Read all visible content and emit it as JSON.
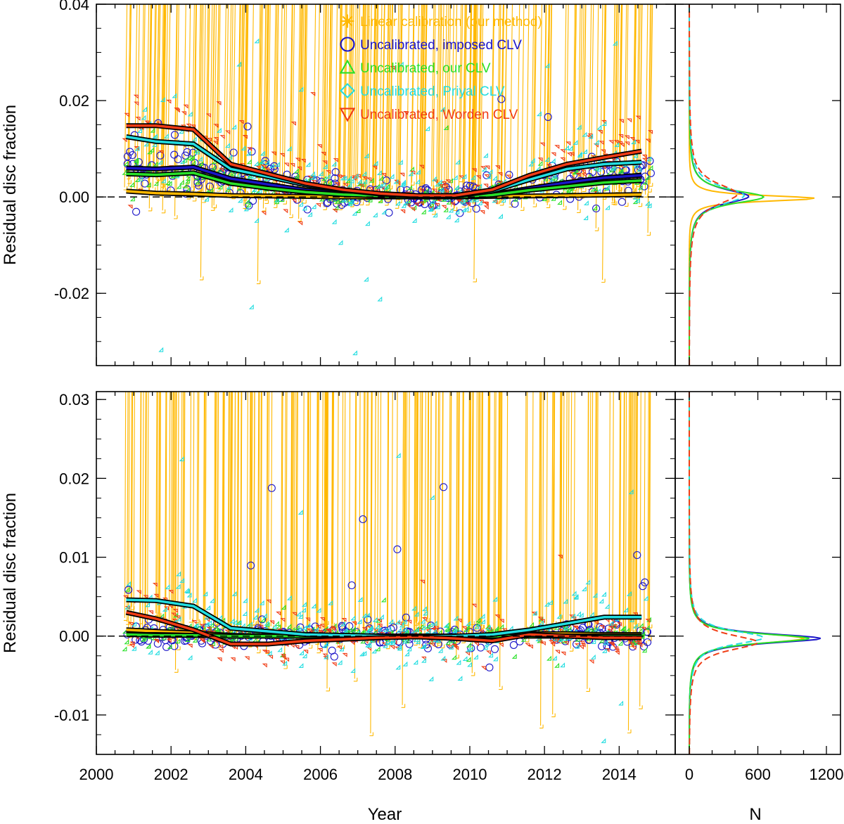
{
  "colors": {
    "linear": "#ffb800",
    "imposed": "#1a14c8",
    "our": "#28e028",
    "priyal": "#22dde0",
    "worden": "#f03c14",
    "trend": "#000000"
  },
  "chart_data": [
    {
      "type": "scatter",
      "panel": "top",
      "ylabel": "Residual disc fraction",
      "xlabel": "",
      "xlim": [
        2000,
        2015.5
      ],
      "ylim": [
        -0.035,
        0.04
      ],
      "x_ticks": [
        "2000",
        "2002",
        "2004",
        "2006",
        "2008",
        "2010",
        "2012",
        "2014"
      ],
      "y_ticks": [
        {
          "value": 0.04,
          "label": "0.04"
        },
        {
          "value": 0.02,
          "label": "0.02"
        },
        {
          "value": 0.0,
          "label": "0.00"
        },
        {
          "value": -0.02,
          "label": "-0.02"
        }
      ],
      "legend_position": "top-center",
      "legend": [
        {
          "label": "Linear calibration (our method)",
          "color_key": "linear",
          "marker": "asterisk"
        },
        {
          "label": "Uncalibrated, imposed CLV",
          "color_key": "imposed",
          "marker": "circle"
        },
        {
          "label": "Uncalibrated, our CLV",
          "color_key": "our",
          "marker": "triangle-up"
        },
        {
          "label": "Uncalibrated, Priyal CLV",
          "color_key": "priyal",
          "marker": "diamond"
        },
        {
          "label": "Uncalibrated, Worden CLV",
          "color_key": "worden",
          "marker": "triangle-down"
        }
      ],
      "trend_x": [
        2000.8,
        2001.6,
        2002.6,
        2003.6,
        2004.6,
        2005.6,
        2006.6,
        2007.6,
        2008.6,
        2009.6,
        2010.6,
        2011.6,
        2012.6,
        2013.6,
        2014.6
      ],
      "series": [
        {
          "name": "Linear calibration (our method)",
          "color_key": "linear",
          "marker": "asterisk",
          "trend": [
            0.0012,
            0.0008,
            0.0006,
            0.0003,
            0.0002,
            0.0001,
            0.0,
            0.0,
            0.0,
            0.0,
            0.0001,
            0.0002,
            0.0003,
            0.0004,
            0.0005
          ],
          "spread": 0.0025,
          "outlier_min": -0.02,
          "outlier_max": 0.004
        },
        {
          "name": "Uncalibrated, imposed CLV",
          "color_key": "imposed",
          "marker": "circle",
          "trend": [
            0.006,
            0.0058,
            0.0062,
            0.0038,
            0.0026,
            0.0014,
            0.0007,
            0.0003,
            0.0001,
            0.0001,
            0.0005,
            0.0018,
            0.003,
            0.004,
            0.0045
          ],
          "spread": 0.0025,
          "outlier_min": -0.005,
          "outlier_max": 0.021
        },
        {
          "name": "Uncalibrated, our CLV",
          "color_key": "our",
          "marker": "triangle-up",
          "trend": [
            0.0048,
            0.0046,
            0.005,
            0.0028,
            0.0018,
            0.001,
            0.0005,
            0.0002,
            0.0,
            0.0,
            0.0004,
            0.0014,
            0.0022,
            0.003,
            0.0034
          ],
          "spread": 0.0025,
          "outlier_min": -0.004,
          "outlier_max": 0.015
        },
        {
          "name": "Uncalibrated, Priyal CLV",
          "color_key": "priyal",
          "marker": "diamond",
          "trend": [
            0.0125,
            0.0115,
            0.011,
            0.0058,
            0.0042,
            0.0025,
            0.0014,
            0.0006,
            0.0002,
            0.0002,
            0.0012,
            0.0036,
            0.0058,
            0.0068,
            0.0072
          ],
          "spread": 0.005,
          "outlier_min": -0.034,
          "outlier_max": 0.034
        },
        {
          "name": "Uncalibrated, Worden CLV",
          "color_key": "worden",
          "marker": "triangle-down",
          "trend": [
            0.0148,
            0.0148,
            0.014,
            0.0068,
            0.0048,
            0.0028,
            0.0015,
            0.0007,
            0.0003,
            0.0003,
            0.0015,
            0.0045,
            0.0068,
            0.0082,
            0.0095
          ],
          "spread": 0.0035,
          "outlier_min": -0.004,
          "outlier_max": 0.035
        }
      ]
    },
    {
      "type": "scatter",
      "panel": "bottom",
      "ylabel": "Residual disc fraction",
      "xlabel": "Year",
      "xlim": [
        2000,
        2015.5
      ],
      "ylim": [
        -0.015,
        0.031
      ],
      "x_ticks": [
        "2000",
        "2002",
        "2004",
        "2006",
        "2008",
        "2010",
        "2012",
        "2014"
      ],
      "y_ticks": [
        {
          "value": 0.03,
          "label": "0.03"
        },
        {
          "value": 0.02,
          "label": "0.02"
        },
        {
          "value": 0.01,
          "label": "0.01"
        },
        {
          "value": 0.0,
          "label": "0.00"
        },
        {
          "value": -0.01,
          "label": "-0.01"
        }
      ],
      "trend_x": [
        2000.8,
        2001.6,
        2002.6,
        2003.6,
        2004.6,
        2005.6,
        2006.6,
        2007.6,
        2008.6,
        2009.6,
        2010.6,
        2011.6,
        2012.6,
        2013.6,
        2014.6
      ],
      "series": [
        {
          "name": "Linear calibration (our method)",
          "color_key": "linear",
          "marker": "asterisk",
          "trend": [
            0.0008,
            0.0006,
            0.0004,
            0.0001,
            0.0,
            0.0,
            0.0,
            0.0,
            0.0,
            0.0,
            0.0001,
            0.0003,
            0.0003,
            0.0002,
            0.0002
          ],
          "spread": 0.0015,
          "outlier_min": -0.013,
          "outlier_max": 0.004
        },
        {
          "name": "Uncalibrated, imposed CLV",
          "color_key": "imposed",
          "marker": "circle",
          "trend": [
            0.0002,
            0.0002,
            0.0001,
            0.0,
            0.0,
            0.0,
            0.0,
            0.0,
            0.0,
            0.0,
            0.0,
            0.0,
            0.0,
            0.0,
            0.0
          ],
          "spread": 0.0012,
          "outlier_min": -0.004,
          "outlier_max": 0.021
        },
        {
          "name": "Uncalibrated, our CLV",
          "color_key": "our",
          "marker": "triangle-up",
          "trend": [
            0.0002,
            0.0001,
            0.0001,
            0.0,
            0.0,
            0.0,
            0.0,
            0.0,
            0.0,
            0.0,
            0.0,
            0.0,
            0.0,
            0.0,
            0.0
          ],
          "spread": 0.0012,
          "outlier_min": -0.004,
          "outlier_max": 0.006
        },
        {
          "name": "Uncalibrated, Priyal CLV",
          "color_key": "priyal",
          "marker": "diamond",
          "trend": [
            0.0046,
            0.0045,
            0.0038,
            0.001,
            0.0006,
            0.0002,
            0.0001,
            0.0,
            0.0,
            0.0,
            0.0002,
            0.0008,
            0.0016,
            0.0024,
            0.0024
          ],
          "spread": 0.003,
          "outlier_min": -0.015,
          "outlier_max": 0.029
        },
        {
          "name": "Uncalibrated, Worden CLV",
          "color_key": "worden",
          "marker": "triangle-down",
          "trend": [
            0.003,
            0.0022,
            0.0008,
            -0.001,
            -0.001,
            -0.0006,
            -0.0004,
            -0.0002,
            -0.0001,
            -0.0003,
            -0.0006,
            0.0002,
            0.0,
            -0.0002,
            -0.0002
          ],
          "spread": 0.0022,
          "outlier_min": -0.004,
          "outlier_max": 0.02
        }
      ]
    },
    {
      "type": "line",
      "panel": "histogram",
      "xlabel": "N",
      "xlim": [
        0,
        1200
      ],
      "x_ticks": [
        "0",
        "600",
        "1200"
      ],
      "series": [
        {
          "name": "Linear calibration (our method)",
          "color_key": "linear",
          "top_peak": 1100,
          "top_center": -0.0003,
          "top_width": 0.0011,
          "bottom_peak": 1000,
          "bottom_center": -0.0003,
          "bottom_width": 0.0012
        },
        {
          "name": "Uncalibrated, imposed CLV",
          "color_key": "imposed",
          "top_peak": 520,
          "top_center": 0.0001,
          "top_width": 0.0028,
          "bottom_peak": 1150,
          "bottom_center": -0.0003,
          "bottom_width": 0.0011
        },
        {
          "name": "Uncalibrated, our CLV",
          "color_key": "our",
          "top_peak": 650,
          "top_center": 0.0,
          "top_width": 0.0025,
          "bottom_peak": 1050,
          "bottom_center": -0.0003,
          "bottom_width": 0.0011
        },
        {
          "name": "Uncalibrated, Priyal CLV",
          "color_key": "priyal",
          "top_peak": 480,
          "top_center": 0.0003,
          "top_width": 0.0034,
          "bottom_peak": 650,
          "bottom_center": -0.0002,
          "bottom_width": 0.0016,
          "dash": true
        },
        {
          "name": "Uncalibrated, Worden CLV",
          "color_key": "worden",
          "top_peak": 420,
          "top_center": 0.0006,
          "top_width": 0.004,
          "bottom_peak": 600,
          "bottom_center": -0.0008,
          "bottom_width": 0.0018,
          "dash": true
        }
      ]
    }
  ]
}
